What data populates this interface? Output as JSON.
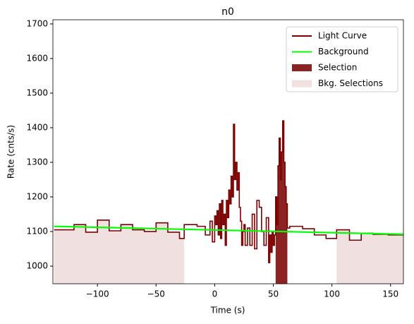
{
  "chart_data": {
    "type": "line",
    "title": "n0",
    "x_label": "Time (s)",
    "y_label": "Rate (cnts/s)",
    "xlim": [
      -138,
      161
    ],
    "ylim": [
      949,
      1712
    ],
    "xticks": [
      {
        "value": -100,
        "label": "−100"
      },
      {
        "value": -50,
        "label": "−50"
      },
      0,
      50,
      100,
      150
    ],
    "yticks": [
      1000,
      1100,
      1200,
      1300,
      1400,
      1500,
      1600,
      1700
    ],
    "legend": "upper right",
    "series": [
      {
        "name": "Light Curve",
        "color": "#7b0000",
        "step": true,
        "x": [
          -137,
          -120,
          -110,
          -100,
          -90,
          -80,
          -70,
          -60,
          -50,
          -40,
          -30,
          -26,
          -15,
          -8,
          -4,
          -2,
          0,
          1,
          2,
          3,
          4,
          5,
          6,
          7,
          8,
          9,
          10,
          11,
          12,
          13,
          14,
          15,
          16,
          17,
          18,
          19,
          20,
          21,
          22,
          23,
          24,
          25,
          26,
          28,
          30,
          32,
          34,
          36,
          38,
          40,
          42,
          44,
          46,
          47,
          48,
          49,
          50,
          51,
          52,
          53,
          54,
          55,
          56,
          57,
          58,
          59,
          60,
          61,
          62,
          64,
          75,
          85,
          95,
          104,
          115,
          125,
          135,
          148
        ],
        "values": [
          1105,
          1120,
          1098,
          1133,
          1102,
          1120,
          1105,
          1100,
          1125,
          1098,
          1080,
          1120,
          1115,
          1090,
          1130,
          1070,
          1145,
          1120,
          1160,
          1090,
          1180,
          1080,
          1190,
          1120,
          1150,
          1060,
          1190,
          1140,
          1220,
          1180,
          1260,
          1200,
          1410,
          1250,
          1300,
          1220,
          1270,
          1170,
          1130,
          1060,
          1100,
          1120,
          1060,
          1110,
          1060,
          1150,
          1050,
          1190,
          1170,
          1100,
          1060,
          1140,
          1010,
          1090,
          1040,
          1100,
          1060,
          1090,
          1200,
          1120,
          1290,
          1370,
          1250,
          1330,
          1420,
          1300,
          1230,
          1180,
          1110,
          1115,
          1108,
          1090,
          1080,
          1105,
          1075,
          1095,
          1092,
          1090
        ]
      },
      {
        "name": "Background",
        "color": "#00ff00",
        "x": [
          -137,
          161
        ],
        "values": [
          1115,
          1092
        ]
      }
    ],
    "selections": [
      {
        "name": "Selection",
        "color": "#8b2323",
        "ranges": [
          [
            52,
            62
          ]
        ]
      },
      {
        "name": "Bkg. Selections",
        "color": "#f0e0e0",
        "ranges": [
          [
            -137,
            -26
          ],
          [
            104,
            161
          ]
        ]
      }
    ]
  }
}
